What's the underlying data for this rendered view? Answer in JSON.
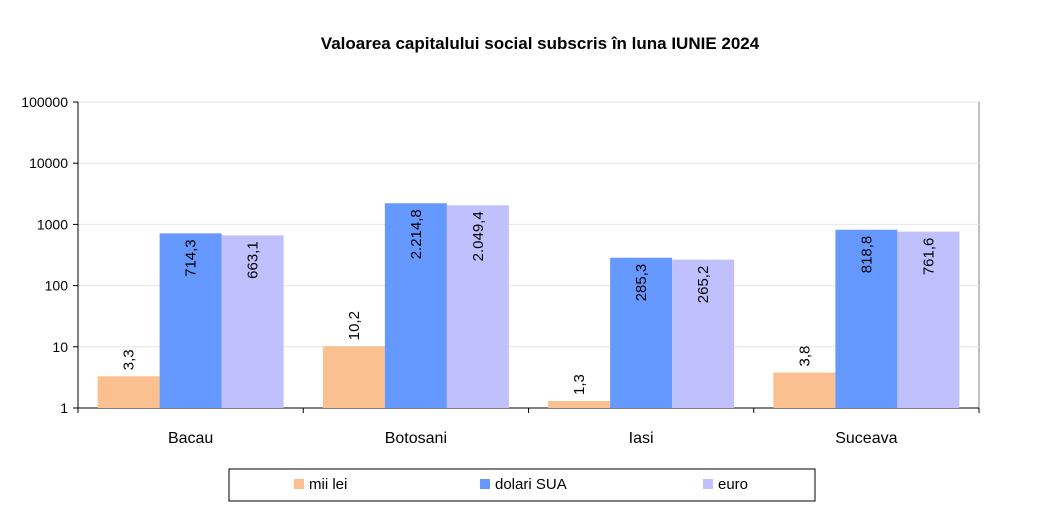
{
  "chart_data": {
    "type": "bar",
    "title": "Valoarea capitalului social subscris în luna IUNIE 2024",
    "xlabel": "",
    "ylabel": "",
    "yscale": "log",
    "ylim": [
      1,
      100000
    ],
    "yticks": [
      {
        "value": 1,
        "label": "1"
      },
      {
        "value": 10,
        "label": "10"
      },
      {
        "value": 100,
        "label": "100"
      },
      {
        "value": 1000,
        "label": "1000"
      },
      {
        "value": 10000,
        "label": "10000"
      },
      {
        "value": 100000,
        "label": "100000"
      }
    ],
    "grid": true,
    "legend_position": "bottom",
    "categories": [
      "Bacau",
      "Botosani",
      "Iasi",
      "Suceava"
    ],
    "series": [
      {
        "name": "mii lei",
        "color": "#fac090",
        "values": [
          3.3,
          10.2,
          1.3,
          3.8
        ],
        "labels": [
          "3,3",
          "10,2",
          "1,3",
          "3,8"
        ]
      },
      {
        "name": "dolari SUA",
        "color": "#6699ff",
        "values": [
          714.3,
          2214.8,
          285.3,
          818.8
        ],
        "labels": [
          "714,3",
          "2.214,8",
          "285,3",
          "818,8"
        ]
      },
      {
        "name": "euro",
        "color": "#c0c0ff",
        "values": [
          663.1,
          2049.4,
          265.2,
          761.6
        ],
        "labels": [
          "663,1",
          "2.049,4",
          "265,2",
          "761,6"
        ]
      }
    ]
  }
}
